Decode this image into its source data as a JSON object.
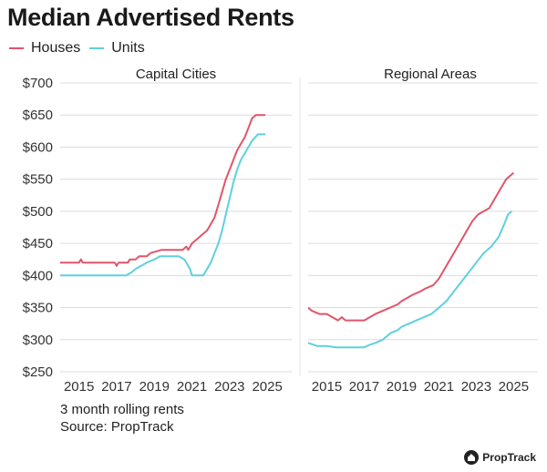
{
  "colors": {
    "houses": "#e0556a",
    "units": "#5fd0dc",
    "grid": "#dcdcdc",
    "divider": "#e6e6e6"
  },
  "brand": {
    "name": "PropTrack",
    "icon": "house-logo-icon"
  },
  "chart_data": {
    "type": "line",
    "title": "Median Advertised Rents",
    "legend": [
      {
        "key": "houses",
        "label": "Houses"
      },
      {
        "key": "units",
        "label": "Units"
      }
    ],
    "legend_position": "top-left",
    "y_ticks": [
      "$700",
      "$650",
      "$600",
      "$550",
      "$500",
      "$450",
      "$400",
      "$350",
      "$300",
      "$250"
    ],
    "y_tick_values": [
      700,
      650,
      600,
      550,
      500,
      450,
      400,
      350,
      300,
      250
    ],
    "ylim": [
      250,
      700
    ],
    "grid": "horizontal",
    "footnote": [
      "3 month rolling rents",
      "Source: PropTrack"
    ],
    "panels": [
      {
        "title": "Capital Cities",
        "xlim": [
          2014.0,
          2026.3
        ],
        "x_ticks": [
          "2015",
          "2017",
          "2019",
          "2021",
          "2023",
          "2025"
        ],
        "x_tick_values": [
          2015,
          2017,
          2019,
          2021,
          2023,
          2025
        ],
        "series": [
          {
            "name": "Houses",
            "points": [
              [
                2014.0,
                420
              ],
              [
                2014.6,
                420
              ],
              [
                2015.0,
                420
              ],
              [
                2015.1,
                425
              ],
              [
                2015.2,
                420
              ],
              [
                2015.8,
                420
              ],
              [
                2016.5,
                420
              ],
              [
                2016.9,
                420
              ],
              [
                2017.0,
                415
              ],
              [
                2017.1,
                420
              ],
              [
                2017.6,
                420
              ],
              [
                2017.7,
                425
              ],
              [
                2018.0,
                425
              ],
              [
                2018.2,
                430
              ],
              [
                2018.6,
                430
              ],
              [
                2018.8,
                435
              ],
              [
                2019.4,
                440
              ],
              [
                2019.8,
                440
              ],
              [
                2020.2,
                440
              ],
              [
                2020.5,
                440
              ],
              [
                2020.7,
                445
              ],
              [
                2020.8,
                440
              ],
              [
                2021.0,
                450
              ],
              [
                2021.2,
                455
              ],
              [
                2021.4,
                460
              ],
              [
                2021.6,
                465
              ],
              [
                2021.8,
                470
              ],
              [
                2022.0,
                480
              ],
              [
                2022.2,
                490
              ],
              [
                2022.4,
                510
              ],
              [
                2022.6,
                530
              ],
              [
                2022.8,
                550
              ],
              [
                2023.0,
                565
              ],
              [
                2023.2,
                580
              ],
              [
                2023.4,
                595
              ],
              [
                2023.6,
                605
              ],
              [
                2023.8,
                615
              ],
              [
                2024.0,
                630
              ],
              [
                2024.2,
                645
              ],
              [
                2024.4,
                650
              ],
              [
                2024.6,
                650
              ],
              [
                2024.9,
                650
              ]
            ]
          },
          {
            "name": "Units",
            "points": [
              [
                2014.0,
                400
              ],
              [
                2015.0,
                400
              ],
              [
                2016.0,
                400
              ],
              [
                2017.0,
                400
              ],
              [
                2017.5,
                400
              ],
              [
                2017.8,
                405
              ],
              [
                2018.0,
                410
              ],
              [
                2018.3,
                415
              ],
              [
                2018.6,
                420
              ],
              [
                2019.0,
                425
              ],
              [
                2019.3,
                430
              ],
              [
                2019.6,
                430
              ],
              [
                2020.0,
                430
              ],
              [
                2020.3,
                430
              ],
              [
                2020.6,
                425
              ],
              [
                2020.9,
                410
              ],
              [
                2021.0,
                400
              ],
              [
                2021.3,
                400
              ],
              [
                2021.6,
                400
              ],
              [
                2021.8,
                410
              ],
              [
                2022.0,
                420
              ],
              [
                2022.2,
                435
              ],
              [
                2022.4,
                450
              ],
              [
                2022.6,
                470
              ],
              [
                2022.8,
                495
              ],
              [
                2023.0,
                520
              ],
              [
                2023.2,
                545
              ],
              [
                2023.4,
                565
              ],
              [
                2023.6,
                580
              ],
              [
                2023.8,
                590
              ],
              [
                2024.0,
                600
              ],
              [
                2024.2,
                610
              ],
              [
                2024.5,
                620
              ],
              [
                2024.9,
                620
              ]
            ]
          }
        ]
      },
      {
        "title": "Regional Areas",
        "xlim": [
          2014.0,
          2026.3
        ],
        "x_ticks": [
          "2015",
          "2017",
          "2019",
          "2021",
          "2023",
          "2025"
        ],
        "x_tick_values": [
          2015,
          2017,
          2019,
          2021,
          2023,
          2025
        ],
        "series": [
          {
            "name": "Houses",
            "points": [
              [
                2014.0,
                350
              ],
              [
                2014.2,
                345
              ],
              [
                2014.6,
                340
              ],
              [
                2015.0,
                340
              ],
              [
                2015.3,
                335
              ],
              [
                2015.6,
                330
              ],
              [
                2015.8,
                335
              ],
              [
                2016.0,
                330
              ],
              [
                2016.5,
                330
              ],
              [
                2017.0,
                330
              ],
              [
                2017.3,
                335
              ],
              [
                2017.6,
                340
              ],
              [
                2018.0,
                345
              ],
              [
                2018.4,
                350
              ],
              [
                2018.8,
                355
              ],
              [
                2019.0,
                360
              ],
              [
                2019.3,
                365
              ],
              [
                2019.6,
                370
              ],
              [
                2020.0,
                375
              ],
              [
                2020.3,
                380
              ],
              [
                2020.7,
                385
              ],
              [
                2021.0,
                395
              ],
              [
                2021.3,
                410
              ],
              [
                2021.6,
                425
              ],
              [
                2021.9,
                440
              ],
              [
                2022.2,
                455
              ],
              [
                2022.5,
                470
              ],
              [
                2022.8,
                485
              ],
              [
                2023.1,
                495
              ],
              [
                2023.4,
                500
              ],
              [
                2023.7,
                505
              ],
              [
                2024.0,
                520
              ],
              [
                2024.3,
                535
              ],
              [
                2024.6,
                550
              ],
              [
                2024.8,
                555
              ],
              [
                2025.0,
                560
              ]
            ]
          },
          {
            "name": "Units",
            "points": [
              [
                2014.0,
                295
              ],
              [
                2014.5,
                290
              ],
              [
                2015.0,
                290
              ],
              [
                2015.5,
                288
              ],
              [
                2016.0,
                288
              ],
              [
                2016.5,
                288
              ],
              [
                2017.0,
                288
              ],
              [
                2017.3,
                292
              ],
              [
                2017.6,
                295
              ],
              [
                2018.0,
                300
              ],
              [
                2018.4,
                310
              ],
              [
                2018.8,
                315
              ],
              [
                2019.0,
                320
              ],
              [
                2019.4,
                325
              ],
              [
                2019.8,
                330
              ],
              [
                2020.2,
                335
              ],
              [
                2020.6,
                340
              ],
              [
                2021.0,
                350
              ],
              [
                2021.4,
                360
              ],
              [
                2021.8,
                375
              ],
              [
                2022.2,
                390
              ],
              [
                2022.6,
                405
              ],
              [
                2023.0,
                420
              ],
              [
                2023.4,
                435
              ],
              [
                2023.8,
                445
              ],
              [
                2024.2,
                460
              ],
              [
                2024.5,
                480
              ],
              [
                2024.7,
                495
              ],
              [
                2024.9,
                500
              ]
            ]
          }
        ]
      }
    ]
  }
}
